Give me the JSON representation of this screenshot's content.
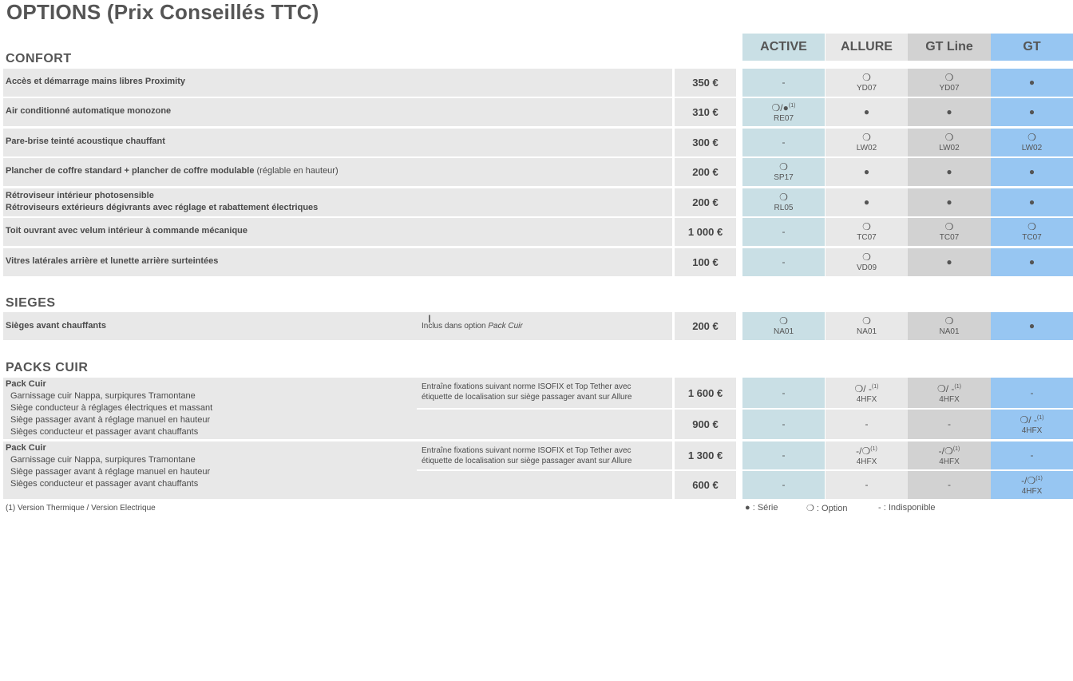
{
  "title": "OPTIONS (Prix Conseillés TTC)",
  "columns": [
    "ACTIVE",
    "ALLURE",
    "GT Line",
    "GT"
  ],
  "colors": {
    "active": "#c9dfe5",
    "allure": "#e8e8e8",
    "gtline": "#d2d2d2",
    "gt": "#97c6f2"
  },
  "sections": {
    "confort": "CONFORT",
    "sieges": "SIEGES",
    "packs": "PACKS CUIR"
  },
  "confort_rows": [
    {
      "label": "Accès et démarrage mains libres Proximity",
      "price": "350 €",
      "cells": [
        {
          "sym": "-",
          "code": ""
        },
        {
          "sym": "❍",
          "code": "YD07"
        },
        {
          "sym": "❍",
          "code": "YD07"
        },
        {
          "sym": "●",
          "code": ""
        }
      ]
    },
    {
      "label": "Air conditionné automatique monozone",
      "price": "310 €",
      "cells": [
        {
          "sym": "❍/●",
          "sup": "(1)",
          "code": "RE07"
        },
        {
          "sym": "●",
          "code": ""
        },
        {
          "sym": "●",
          "code": ""
        },
        {
          "sym": "●",
          "code": ""
        }
      ]
    },
    {
      "label": "Pare-brise teinté acoustique chauffant",
      "price": "300 €",
      "cells": [
        {
          "sym": "-",
          "code": ""
        },
        {
          "sym": "❍",
          "code": "LW02"
        },
        {
          "sym": "❍",
          "code": "LW02"
        },
        {
          "sym": "❍",
          "code": "LW02"
        }
      ]
    },
    {
      "label": "Plancher de coffre standard + plancher de coffre modulable",
      "label_extra": " (réglable en hauteur)",
      "price": "200 €",
      "cells": [
        {
          "sym": "❍",
          "code": "SP17"
        },
        {
          "sym": "●",
          "code": ""
        },
        {
          "sym": "●",
          "code": ""
        },
        {
          "sym": "●",
          "code": ""
        }
      ]
    },
    {
      "label": "Rétroviseur intérieur photosensible",
      "label2": "Rétroviseurs extérieurs dégivrants avec réglage et rabattement électriques",
      "price": "200 €",
      "cells": [
        {
          "sym": "❍",
          "code": "RL05"
        },
        {
          "sym": "●",
          "code": ""
        },
        {
          "sym": "●",
          "code": ""
        },
        {
          "sym": "●",
          "code": ""
        }
      ]
    },
    {
      "label": "Toit ouvrant avec velum intérieur à commande mécanique",
      "price": "1 000 €",
      "cells": [
        {
          "sym": "-",
          "code": ""
        },
        {
          "sym": "❍",
          "code": "TC07"
        },
        {
          "sym": "❍",
          "code": "TC07"
        },
        {
          "sym": "❍",
          "code": "TC07"
        }
      ]
    },
    {
      "label": "Vitres latérales arrière et lunette arrière surteintées",
      "price": "100 €",
      "cells": [
        {
          "sym": "-",
          "code": ""
        },
        {
          "sym": "❍",
          "code": "VD09"
        },
        {
          "sym": "●",
          "code": ""
        },
        {
          "sym": "●",
          "code": ""
        }
      ]
    }
  ],
  "sieges_row": {
    "label": "Sièges avant chauffants",
    "note_prefix": "Inclus dans option ",
    "note_italic": "Pack Cuir",
    "price": "200 €",
    "cells": [
      {
        "sym": "❍",
        "code": "NA01"
      },
      {
        "sym": "❍",
        "code": "NA01"
      },
      {
        "sym": "❍",
        "code": "NA01"
      },
      {
        "sym": "●",
        "code": ""
      }
    ]
  },
  "pack1": {
    "title": "Pack Cuir",
    "lines": [
      "Garnissage cuir Nappa, surpiqures Tramontane",
      "Siège conducteur à réglages électriques et massant",
      "Siège passager avant à réglage manuel en hauteur",
      "Sièges conducteur et passager avant chauffants"
    ],
    "note1": "Entraîne fixations suivant norme ISOFIX et Top Tether avec",
    "note2": "étiquette de localisation sur siège passager avant sur Allure",
    "price_a": "1 600 €",
    "cells_a": [
      {
        "sym": "-",
        "code": ""
      },
      {
        "sym": "❍/ -",
        "sup": "(1)",
        "code": "4HFX"
      },
      {
        "sym": "❍/ -",
        "sup": "(1)",
        "code": "4HFX"
      },
      {
        "sym": "-",
        "code": ""
      }
    ],
    "price_b": "900 €",
    "cells_b": [
      {
        "sym": "-",
        "code": ""
      },
      {
        "sym": "-",
        "code": ""
      },
      {
        "sym": "-",
        "code": ""
      },
      {
        "sym": "❍/ -",
        "sup": "(1)",
        "code": "4HFX"
      }
    ]
  },
  "pack2": {
    "title": "Pack Cuir",
    "lines": [
      "Garnissage cuir Nappa, surpiqures Tramontane",
      "Siège passager avant à réglage manuel en hauteur",
      "Sièges conducteur et passager avant chauffants"
    ],
    "note1": "Entraîne fixations suivant norme ISOFIX et Top Tether avec",
    "note2": "étiquette de localisation sur siège passager avant sur Allure",
    "price_a": "1 300 €",
    "cells_a": [
      {
        "sym": "-",
        "code": ""
      },
      {
        "sym": "-/❍",
        "sup": "(1)",
        "code": "4HFX"
      },
      {
        "sym": "-/❍",
        "sup": "(1)",
        "code": "4HFX"
      },
      {
        "sym": "-",
        "code": ""
      }
    ],
    "price_b": "600 €",
    "cells_b": [
      {
        "sym": "-",
        "code": ""
      },
      {
        "sym": "-",
        "code": ""
      },
      {
        "sym": "-",
        "code": ""
      },
      {
        "sym": "-/❍",
        "sup": "(1)",
        "code": "4HFX"
      }
    ]
  },
  "footnote": "(1) Version Thermique / Version Electrique",
  "legend": {
    "serie": "● : Série",
    "option": "❍ : Option",
    "indispo": "- : Indisponible"
  }
}
